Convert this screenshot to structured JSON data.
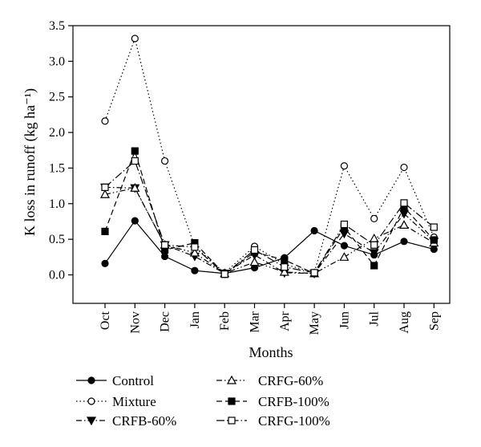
{
  "chart_data": {
    "type": "line",
    "title": "",
    "xlabel": "Months",
    "ylabel": "K loss in runoff (kg ha⁻¹)",
    "categories": [
      "Oct",
      "Nov",
      "Dec",
      "Jan",
      "Feb",
      "Mar",
      "Apr",
      "May",
      "Jun",
      "Jul",
      "Aug",
      "Sep"
    ],
    "ylim": [
      -0.4,
      3.5
    ],
    "yticks": [
      "0.0",
      "0.5",
      "1.0",
      "1.5",
      "2.0",
      "2.5",
      "3.0",
      "3.5"
    ],
    "grid": false,
    "legend_position": "bottom",
    "series": [
      {
        "name": "Control",
        "line": "solid",
        "marker": "filled-circle",
        "values": [
          0.16,
          0.76,
          0.26,
          0.06,
          0.02,
          0.1,
          0.24,
          0.62,
          0.41,
          0.28,
          0.47,
          0.36
        ]
      },
      {
        "name": "Mixture",
        "line": "dotted",
        "marker": "open-circle",
        "values": [
          2.16,
          3.32,
          1.6,
          0.4,
          0.03,
          0.4,
          0.15,
          0.03,
          1.53,
          0.79,
          1.51,
          0.53
        ]
      },
      {
        "name": "CRFB-60%",
        "line": "dash-dot",
        "marker": "filled-triangle-down",
        "values": [
          1.23,
          1.22,
          0.42,
          0.26,
          0.02,
          0.28,
          0.03,
          0.02,
          0.58,
          0.31,
          0.86,
          0.47
        ]
      },
      {
        "name": "CRFG-60%",
        "line": "dash-dot-dot",
        "marker": "open-triangle-up",
        "values": [
          1.13,
          1.22,
          0.42,
          0.31,
          0.02,
          0.18,
          0.04,
          0.02,
          0.25,
          0.51,
          0.7,
          0.45
        ]
      },
      {
        "name": "CRFB-100%",
        "line": "dashed",
        "marker": "filled-square",
        "values": [
          0.61,
          1.74,
          0.35,
          0.45,
          0.01,
          0.32,
          0.21,
          0.02,
          0.67,
          0.13,
          0.95,
          0.49
        ]
      },
      {
        "name": "CRFG-100%",
        "line": "dash-dot-long",
        "marker": "open-square",
        "values": [
          1.23,
          1.6,
          0.42,
          0.39,
          0.01,
          0.35,
          0.11,
          0.03,
          0.71,
          0.42,
          1.01,
          0.67
        ]
      }
    ]
  }
}
